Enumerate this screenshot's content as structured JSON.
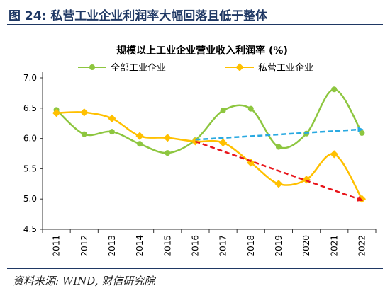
{
  "header": {
    "figure_title": "图 24:  私营工业企业利润率大幅回落且低于整体"
  },
  "footer": {
    "source": "资料来源: WIND, 财信研究院"
  },
  "colors": {
    "series_all": "#8dc63f",
    "series_private": "#ffc000",
    "arrow_blue": "#29a9e1",
    "arrow_red": "#e8161c",
    "axis": "#333333"
  },
  "chart_data": {
    "type": "line",
    "title": "规模以上工业企业营业收入利润率 (%)",
    "xlabel": "",
    "ylabel": "",
    "categories": [
      "2011",
      "2012",
      "2013",
      "2014",
      "2015",
      "2016",
      "2017",
      "2018",
      "2019",
      "2020",
      "2021",
      "2022"
    ],
    "ylim": [
      4.5,
      7.0
    ],
    "yticks": [
      "4.5",
      "5.0",
      "5.5",
      "6.0",
      "6.5",
      "7.0"
    ],
    "grid": false,
    "legend_position": "top",
    "series": [
      {
        "name": "全部工业企业",
        "color": "#8dc63f",
        "values": [
          6.47,
          6.07,
          6.11,
          5.91,
          5.76,
          5.97,
          6.46,
          6.49,
          5.86,
          6.08,
          6.81,
          6.09
        ]
      },
      {
        "name": "私营工业企业",
        "color": "#ffc000",
        "values": [
          6.42,
          6.43,
          6.33,
          6.04,
          6.01,
          5.95,
          5.93,
          5.6,
          5.25,
          5.32,
          5.74,
          5.0
        ]
      }
    ],
    "annotations": [
      {
        "type": "arrow",
        "color": "#29a9e1",
        "from": [
          "2016",
          5.98
        ],
        "to": [
          "2022",
          6.15
        ]
      },
      {
        "type": "arrow",
        "color": "#e8161c",
        "from": [
          "2016",
          5.95
        ],
        "to": [
          "2022",
          4.98
        ]
      }
    ]
  }
}
